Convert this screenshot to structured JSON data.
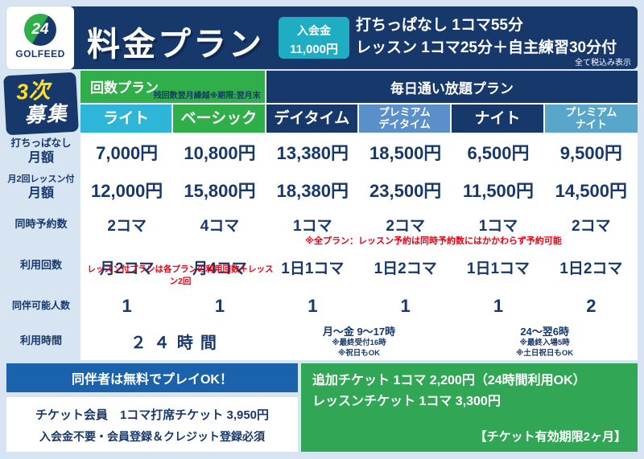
{
  "colors": {
    "navy": "#17386b",
    "light_teal": "#2eb6d9",
    "green": "#2fae4a",
    "premium_day_blue": "#5b8fc9",
    "premium_night_blue": "#58a7cb",
    "admission_teal": "#1fadc3",
    "footer_blue": "#1b62ad",
    "footer_green": "#31a654",
    "note_red": "#e60012",
    "badge_yellow": "#ffdf26",
    "background": "#d7e5f2"
  },
  "logo": {
    "number": "24",
    "brand": "GOLFEED"
  },
  "header": {
    "title": "料金プラン",
    "admission_label": "入会金",
    "admission_value": "11,000円",
    "info_line1": "打ちっぱなし 1コマ55分",
    "info_line2": "レッスン 1コマ25分＋自主練習30分付",
    "tax_note": "全て税込み表示"
  },
  "badge": {
    "line1": "3次",
    "line2": "募集"
  },
  "table": {
    "group_count_label": "回数プラン",
    "group_count_note": "残回数翌月繰越※期限:翌月末",
    "group_unlimited_label": "毎日通い放題プラン",
    "columns": [
      {
        "line1": "ライト",
        "line2": ""
      },
      {
        "line1": "ベーシック",
        "line2": ""
      },
      {
        "line1": "デイタイム",
        "line2": ""
      },
      {
        "line1": "プレミアム",
        "line2": "デイタイム"
      },
      {
        "line1": "ナイト",
        "line2": ""
      },
      {
        "line1": "プレミアム",
        "line2": "ナイト"
      }
    ],
    "row_labels": {
      "r1_line1": "打ちっぱなし",
      "r1_line2": "月額",
      "r2_line1": "月2回レッスン付",
      "r2_line2": "月額",
      "r3": "同時予約数",
      "r4": "利用回数",
      "r5": "同伴可能人数",
      "r6": "利用時間"
    },
    "monthly": [
      "7,000円",
      "10,800円",
      "13,380円",
      "18,500円",
      "6,500円",
      "9,500円"
    ],
    "lesson_monthly": [
      "12,000円",
      "15,800円",
      "18,380円",
      "23,500円",
      "11,500円",
      "14,500円"
    ],
    "reservations": [
      "2コマ",
      "4コマ",
      "1コマ",
      "2コマ",
      "1コマ",
      "2コマ"
    ],
    "reservation_note": "※全プラン：レッスン予約は同時予約数にはかかわらず予約可能",
    "usage": [
      "月2コマ",
      "月4コマ",
      "1日1コマ",
      "1日2コマ",
      "1日1コマ",
      "1日2コマ"
    ],
    "usage_note": "レッスン付プランは各プランの利用回数＋レッスン2回",
    "companions": [
      "1",
      "1",
      "1",
      "1",
      "1",
      "2"
    ],
    "hours": {
      "all": "２４時間",
      "day_main": "月～金 9～17時",
      "day_note1": "※最終受付16時",
      "day_note2": "※祝日もOK",
      "night_main": "24～翌6時",
      "night_note1": "※最終入場5時",
      "night_note2": "※土日祝日もOK"
    }
  },
  "footer": {
    "companion_box": "同伴者は無料でプレイOK！",
    "ticket_line1": "チケット会員　1コマ打席チケット 3,950円",
    "ticket_line2": "入会金不要・会員登録＆クレジット登録必須",
    "green_line1": "追加チケット 1コマ 2,200円（24時間利用OK）",
    "green_line2": "レッスンチケット 1コマ 3,300円",
    "validity": "【チケット有効期限2ヶ月】"
  }
}
